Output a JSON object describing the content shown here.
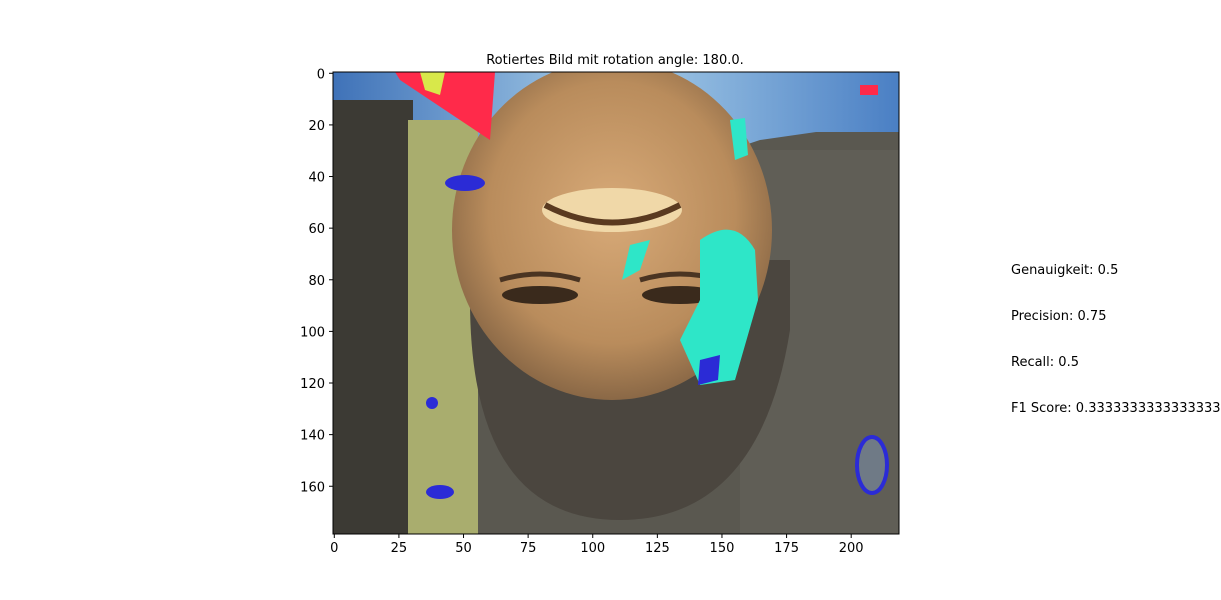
{
  "chart_data": {
    "type": "image",
    "title": "Rotiertes Bild mit rotation angle: 180.0.",
    "xlabel": "",
    "ylabel": "",
    "xlim": [
      -0.5,
      218.5
    ],
    "ylim": [
      178.5,
      -0.5
    ],
    "x_ticks": [
      0,
      25,
      50,
      75,
      100,
      125,
      150,
      175,
      200
    ],
    "y_ticks": [
      0,
      20,
      40,
      60,
      80,
      100,
      120,
      140,
      160
    ],
    "grid": false,
    "image_description_regions": [
      {
        "name": "sky-region",
        "color": "#6a9ecb"
      },
      {
        "name": "face-region",
        "color": "#c49462"
      },
      {
        "name": "hair-beard-region",
        "color": "#4b463f"
      },
      {
        "name": "tree-bark-region",
        "color": "#5c5a52"
      },
      {
        "name": "foliage-region",
        "color": "#a9ad6e"
      },
      {
        "name": "artifact-red",
        "color": "#ff2a4a"
      },
      {
        "name": "artifact-cyan",
        "color": "#2ee6c8"
      },
      {
        "name": "artifact-blue",
        "color": "#2b2bd6"
      }
    ]
  },
  "metrics": {
    "accuracy": "Genauigkeit: 0.5",
    "precision": "Precision: 0.75",
    "recall": "Recall: 0.5",
    "f1": "F1 Score: 0.3333333333333333"
  }
}
